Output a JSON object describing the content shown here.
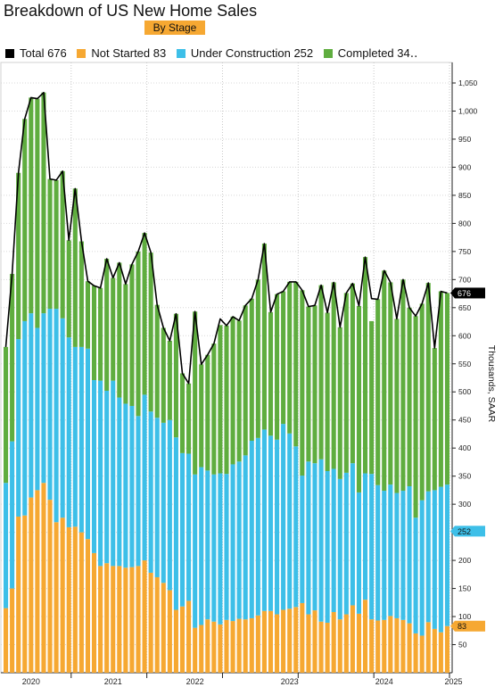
{
  "title": "Breakdown of US New Home Sales",
  "subtitle": "By Stage",
  "legend": [
    {
      "label": "Total 676",
      "color": "#000000"
    },
    {
      "label": "Not Started 83",
      "color": "#f6a832"
    },
    {
      "label": "Under Construction 252",
      "color": "#3dbfe8"
    },
    {
      "label": "Completed 34‥",
      "color": "#5fad3f"
    }
  ],
  "chart_data": {
    "type": "bar",
    "stacked": true,
    "x_labels": [
      "2020",
      "2021",
      "2022",
      "2023",
      "2024",
      "2025"
    ],
    "x_label_index": [
      4,
      17,
      30,
      45,
      60,
      71
    ],
    "y_axis_title": "Thousands, SAAR",
    "ylim": [
      0,
      1050
    ],
    "y_ticks": [
      50,
      100,
      150,
      200,
      250,
      300,
      350,
      400,
      450,
      500,
      550,
      600,
      650,
      700,
      750,
      800,
      850,
      900,
      950,
      1000,
      1050
    ],
    "y_tick_labels": [
      "50",
      "100",
      "150",
      "200",
      "250",
      "300",
      "350",
      "400",
      "450",
      "500",
      "550",
      "600",
      "650",
      "700",
      "750",
      "800",
      "850",
      "900",
      "950",
      "1,000",
      "1,050"
    ],
    "grid": true,
    "series": [
      {
        "name": "Not Started",
        "color": "#f6a832",
        "values": [
          115,
          150,
          278,
          280,
          312,
          325,
          338,
          308,
          268,
          276,
          259,
          260,
          250,
          238,
          213,
          190,
          195,
          190,
          190,
          187,
          188,
          190,
          200,
          178,
          170,
          160,
          147,
          112,
          118,
          128,
          80,
          85,
          95,
          91,
          86,
          94,
          92,
          96,
          95,
          97,
          102,
          110,
          110,
          104,
          112,
          114,
          117,
          124,
          104,
          111,
          91,
          89,
          108,
          95,
          104,
          120,
          105,
          130,
          95,
          93,
          94,
          101,
          97,
          94,
          88,
          70,
          66,
          90,
          78,
          72,
          83
        ],
        "last_label": "83"
      },
      {
        "name": "Under Construction",
        "color": "#3dbfe8",
        "values": [
          223,
          262,
          316,
          346,
          328,
          289,
          302,
          340,
          380,
          355,
          338,
          320,
          330,
          339,
          308,
          330,
          307,
          330,
          300,
          292,
          287,
          267,
          295,
          287,
          284,
          285,
          303,
          307,
          273,
          262,
          273,
          281,
          265,
          262,
          269,
          260,
          279,
          280,
          292,
          316,
          316,
          323,
          312,
          311,
          331,
          312,
          286,
          227,
          272,
          262,
          289,
          270,
          255,
          250,
          252,
          253,
          216,
          225,
          259,
          241,
          230,
          234,
          223,
          230,
          244,
          206,
          241,
          233,
          247,
          259,
          252
        ],
        "last_label": "252"
      },
      {
        "name": "Completed",
        "color": "#5fad3f",
        "values": [
          242,
          298,
          296,
          360,
          384,
          408,
          393,
          231,
          229,
          262,
          173,
          282,
          188,
          120,
          168,
          165,
          235,
          183,
          240,
          213,
          252,
          293,
          288,
          283,
          201,
          169,
          141,
          220,
          142,
          125,
          290,
          183,
          206,
          233,
          264,
          264,
          263,
          251,
          267,
          253,
          282,
          331,
          220,
          259,
          236,
          270,
          293,
          330,
          276,
          281,
          310,
          282,
          332,
          270,
          320,
          320,
          332,
          385,
          272,
          331,
          392,
          360,
          310,
          376,
          318,
          359,
          350,
          371,
          253,
          348,
          341
        ],
        "last_label": "34‥"
      }
    ],
    "total": {
      "name": "Total",
      "color": "#000000",
      "values": [
        580,
        710,
        890,
        986,
        1024,
        1022,
        1033,
        879,
        877,
        893,
        770,
        862,
        768,
        697,
        689,
        685,
        737,
        703,
        730,
        692,
        727,
        750,
        783,
        748,
        655,
        614,
        591,
        639,
        533,
        515,
        643,
        549,
        566,
        586,
        630,
        618,
        634,
        627,
        654,
        666,
        700,
        764,
        642,
        674,
        679,
        696,
        696,
        681,
        652,
        654,
        690,
        641,
        695,
        615,
        676,
        693,
        653,
        740,
        666,
        665,
        716,
        695,
        630,
        700,
        650,
        635,
        657,
        694,
        578,
        679,
        676
      ],
      "last_label": "676"
    }
  }
}
